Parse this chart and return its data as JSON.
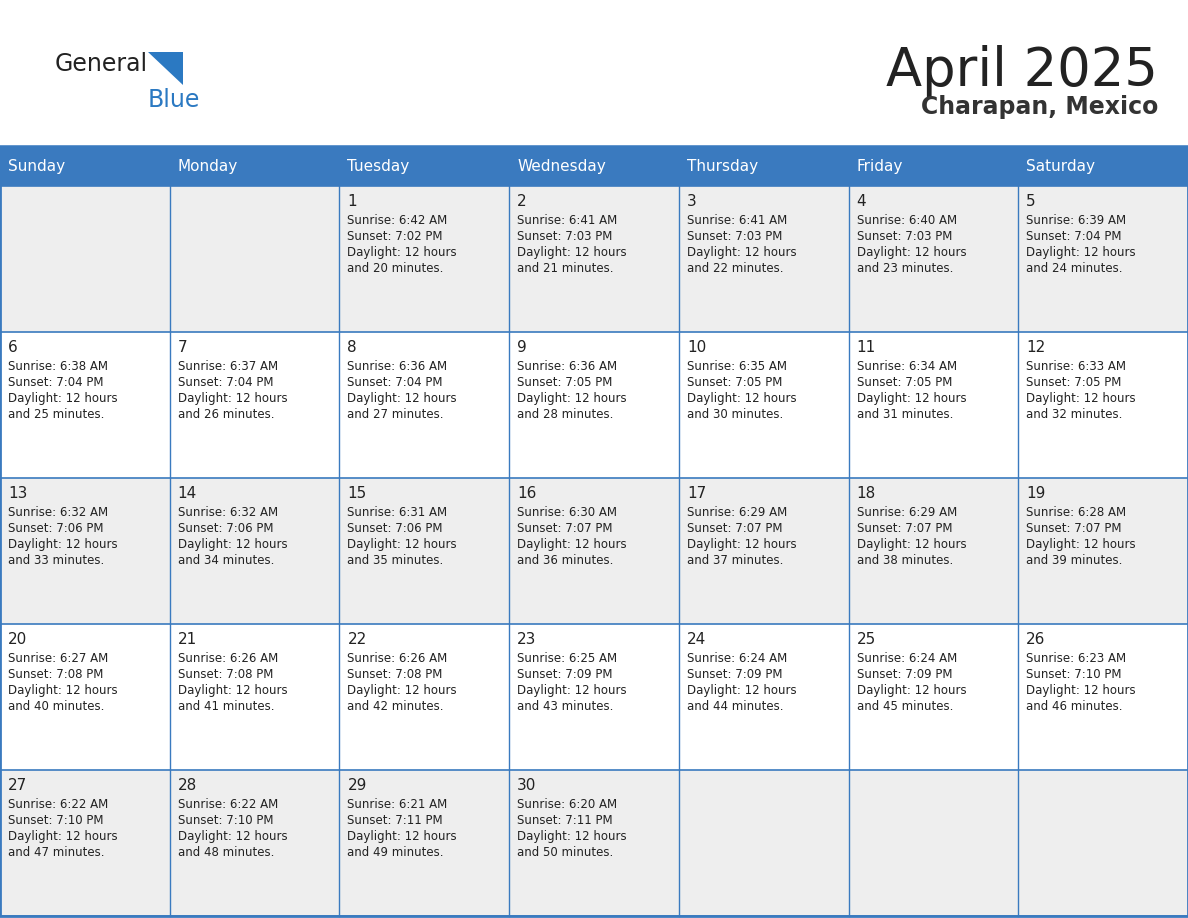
{
  "title": "April 2025",
  "subtitle": "Charapan, Mexico",
  "header_bg_color": "#3a7abf",
  "header_text_color": "#ffffff",
  "row_bg_colors": [
    "#eeeeee",
    "#ffffff",
    "#eeeeee",
    "#ffffff",
    "#eeeeee"
  ],
  "border_color": "#3a7abf",
  "day_headers": [
    "Sunday",
    "Monday",
    "Tuesday",
    "Wednesday",
    "Thursday",
    "Friday",
    "Saturday"
  ],
  "title_color": "#222222",
  "subtitle_color": "#333333",
  "text_color": "#222222",
  "logo_general_color": "#222222",
  "logo_blue_color": "#2b79c2",
  "logo_triangle_color": "#2b79c2",
  "weeks": [
    [
      {
        "day": null,
        "sunrise": null,
        "sunset": null,
        "daylight": null
      },
      {
        "day": null,
        "sunrise": null,
        "sunset": null,
        "daylight": null
      },
      {
        "day": 1,
        "sunrise": "6:42 AM",
        "sunset": "7:02 PM",
        "daylight": "12 hours and 20 minutes."
      },
      {
        "day": 2,
        "sunrise": "6:41 AM",
        "sunset": "7:03 PM",
        "daylight": "12 hours and 21 minutes."
      },
      {
        "day": 3,
        "sunrise": "6:41 AM",
        "sunset": "7:03 PM",
        "daylight": "12 hours and 22 minutes."
      },
      {
        "day": 4,
        "sunrise": "6:40 AM",
        "sunset": "7:03 PM",
        "daylight": "12 hours and 23 minutes."
      },
      {
        "day": 5,
        "sunrise": "6:39 AM",
        "sunset": "7:04 PM",
        "daylight": "12 hours and 24 minutes."
      }
    ],
    [
      {
        "day": 6,
        "sunrise": "6:38 AM",
        "sunset": "7:04 PM",
        "daylight": "12 hours and 25 minutes."
      },
      {
        "day": 7,
        "sunrise": "6:37 AM",
        "sunset": "7:04 PM",
        "daylight": "12 hours and 26 minutes."
      },
      {
        "day": 8,
        "sunrise": "6:36 AM",
        "sunset": "7:04 PM",
        "daylight": "12 hours and 27 minutes."
      },
      {
        "day": 9,
        "sunrise": "6:36 AM",
        "sunset": "7:05 PM",
        "daylight": "12 hours and 28 minutes."
      },
      {
        "day": 10,
        "sunrise": "6:35 AM",
        "sunset": "7:05 PM",
        "daylight": "12 hours and 30 minutes."
      },
      {
        "day": 11,
        "sunrise": "6:34 AM",
        "sunset": "7:05 PM",
        "daylight": "12 hours and 31 minutes."
      },
      {
        "day": 12,
        "sunrise": "6:33 AM",
        "sunset": "7:05 PM",
        "daylight": "12 hours and 32 minutes."
      }
    ],
    [
      {
        "day": 13,
        "sunrise": "6:32 AM",
        "sunset": "7:06 PM",
        "daylight": "12 hours and 33 minutes."
      },
      {
        "day": 14,
        "sunrise": "6:32 AM",
        "sunset": "7:06 PM",
        "daylight": "12 hours and 34 minutes."
      },
      {
        "day": 15,
        "sunrise": "6:31 AM",
        "sunset": "7:06 PM",
        "daylight": "12 hours and 35 minutes."
      },
      {
        "day": 16,
        "sunrise": "6:30 AM",
        "sunset": "7:07 PM",
        "daylight": "12 hours and 36 minutes."
      },
      {
        "day": 17,
        "sunrise": "6:29 AM",
        "sunset": "7:07 PM",
        "daylight": "12 hours and 37 minutes."
      },
      {
        "day": 18,
        "sunrise": "6:29 AM",
        "sunset": "7:07 PM",
        "daylight": "12 hours and 38 minutes."
      },
      {
        "day": 19,
        "sunrise": "6:28 AM",
        "sunset": "7:07 PM",
        "daylight": "12 hours and 39 minutes."
      }
    ],
    [
      {
        "day": 20,
        "sunrise": "6:27 AM",
        "sunset": "7:08 PM",
        "daylight": "12 hours and 40 minutes."
      },
      {
        "day": 21,
        "sunrise": "6:26 AM",
        "sunset": "7:08 PM",
        "daylight": "12 hours and 41 minutes."
      },
      {
        "day": 22,
        "sunrise": "6:26 AM",
        "sunset": "7:08 PM",
        "daylight": "12 hours and 42 minutes."
      },
      {
        "day": 23,
        "sunrise": "6:25 AM",
        "sunset": "7:09 PM",
        "daylight": "12 hours and 43 minutes."
      },
      {
        "day": 24,
        "sunrise": "6:24 AM",
        "sunset": "7:09 PM",
        "daylight": "12 hours and 44 minutes."
      },
      {
        "day": 25,
        "sunrise": "6:24 AM",
        "sunset": "7:09 PM",
        "daylight": "12 hours and 45 minutes."
      },
      {
        "day": 26,
        "sunrise": "6:23 AM",
        "sunset": "7:10 PM",
        "daylight": "12 hours and 46 minutes."
      }
    ],
    [
      {
        "day": 27,
        "sunrise": "6:22 AM",
        "sunset": "7:10 PM",
        "daylight": "12 hours and 47 minutes."
      },
      {
        "day": 28,
        "sunrise": "6:22 AM",
        "sunset": "7:10 PM",
        "daylight": "12 hours and 48 minutes."
      },
      {
        "day": 29,
        "sunrise": "6:21 AM",
        "sunset": "7:11 PM",
        "daylight": "12 hours and 49 minutes."
      },
      {
        "day": 30,
        "sunrise": "6:20 AM",
        "sunset": "7:11 PM",
        "daylight": "12 hours and 50 minutes."
      },
      {
        "day": null,
        "sunrise": null,
        "sunset": null,
        "daylight": null
      },
      {
        "day": null,
        "sunrise": null,
        "sunset": null,
        "daylight": null
      },
      {
        "day": null,
        "sunrise": null,
        "sunset": null,
        "daylight": null
      }
    ]
  ]
}
